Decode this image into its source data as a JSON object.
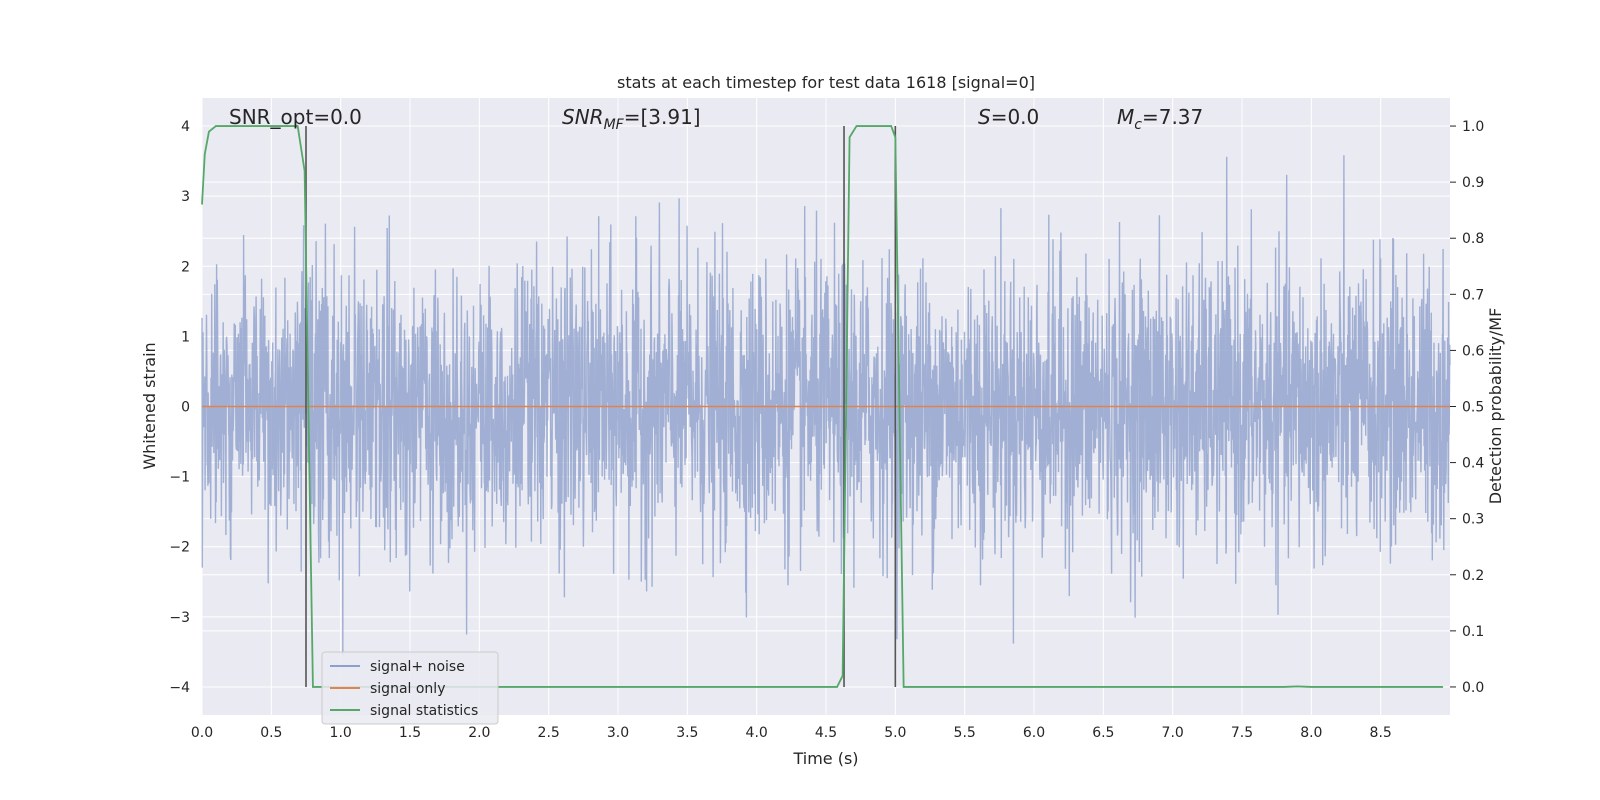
{
  "chart_data": {
    "type": "line",
    "title": "stats at each timestep for test data 1618 [signal=0]",
    "xlabel": "Time (s)",
    "ylabel": "Whitened strain",
    "ylabel_right": "Detection probability/MF",
    "xlim": [
      0,
      9.0
    ],
    "ylim": [
      -4.4,
      4.4
    ],
    "ylim_right": [
      -0.05,
      1.05
    ],
    "x_ticks": [
      0.0,
      0.5,
      1.0,
      1.5,
      2.0,
      2.5,
      3.0,
      3.5,
      4.0,
      4.5,
      5.0,
      5.5,
      6.0,
      6.5,
      7.0,
      7.5,
      8.0,
      8.5
    ],
    "y_ticks": [
      -4,
      -3,
      -2,
      -1,
      0,
      1,
      2,
      3,
      4
    ],
    "y_ticks_right": [
      0.0,
      0.1,
      0.2,
      0.3,
      0.4,
      0.5,
      0.6,
      0.7,
      0.8,
      0.9,
      1.0
    ],
    "grid": true,
    "legend_position": "bottom-left",
    "annotations": {
      "snr_opt": "SNR_opt=0.0",
      "snr_mf": "SNR",
      "snr_mf_sub": "MF",
      "snr_mf_value": "=[3.91]",
      "s_label": "S",
      "s_value": "=0.0",
      "mc_label": "M",
      "mc_sub": "c",
      "mc_value": "=7.37"
    },
    "series": [
      {
        "name": "signal+ noise",
        "color": "#8da0cb",
        "axis": "left",
        "description_level": "noise",
        "std": 1.0,
        "range": [
          -3.6,
          3.8
        ]
      },
      {
        "name": "signal only",
        "color": "#dd8452",
        "axis": "left",
        "x": [
          0.0,
          9.0
        ],
        "y": [
          0.0,
          0.0
        ]
      },
      {
        "name": "signal statistics",
        "color": "#55a868",
        "axis": "right",
        "x": [
          0.0,
          0.02,
          0.05,
          0.1,
          0.2,
          0.4,
          0.6,
          0.69,
          0.74,
          0.78,
          0.8,
          1.0,
          2.0,
          3.0,
          4.0,
          4.5,
          4.58,
          4.62,
          4.67,
          4.72,
          4.8,
          4.9,
          4.97,
          5.0,
          5.06,
          5.1,
          6.0,
          7.0,
          7.8,
          7.9,
          8.0,
          8.5,
          8.95
        ],
        "y": [
          0.86,
          0.95,
          0.99,
          1.0,
          1.0,
          1.0,
          1.0,
          1.0,
          0.92,
          0.3,
          0.0,
          0.0,
          0.0,
          0.0,
          0.0,
          0.0,
          0.0,
          0.02,
          0.98,
          1.0,
          1.0,
          1.0,
          1.0,
          0.98,
          0.0,
          0.0,
          0.0,
          0.0,
          0.0,
          0.001,
          0.0,
          0.0,
          0.0
        ]
      }
    ],
    "vertical_lines": [
      0.75,
      4.63,
      5.0
    ]
  }
}
